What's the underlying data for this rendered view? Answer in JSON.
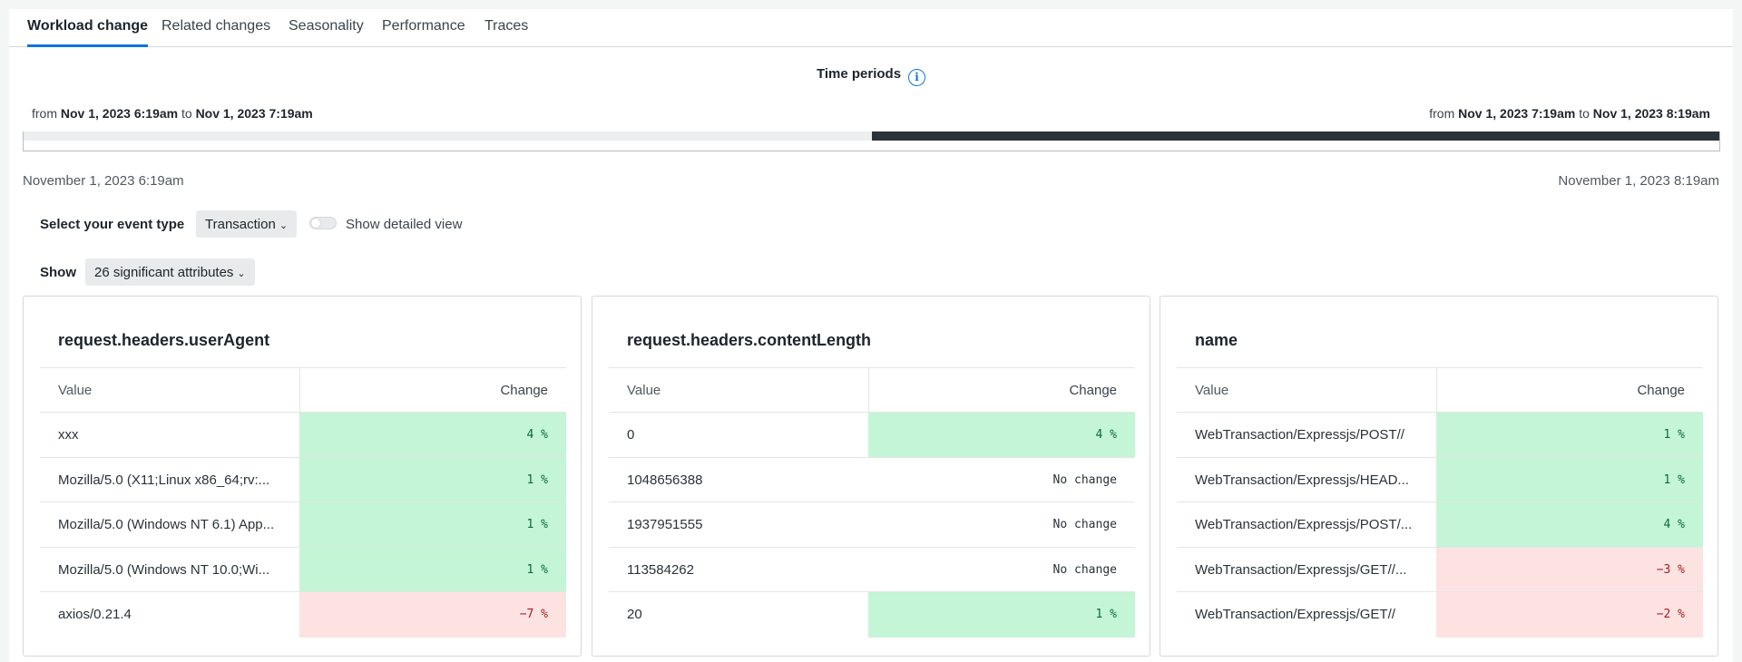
{
  "tabs": [
    {
      "label": "Workload change",
      "active": true
    },
    {
      "label": "Related changes"
    },
    {
      "label": "Seasonality"
    },
    {
      "label": "Performance"
    },
    {
      "label": "Traces"
    }
  ],
  "time_periods": {
    "title": "Time periods",
    "info_icon": "info-icon",
    "from_word": "from",
    "to_word": "to",
    "left_from": "Nov 1, 2023 6:19am",
    "left_to": "Nov 1, 2023 7:19am",
    "right_from": "Nov 1, 2023 7:19am",
    "right_to": "Nov 1, 2023 8:19am",
    "axis_start": "November 1, 2023 6:19am",
    "axis_end": "November 1, 2023 8:19am",
    "colors": {
      "baseline": "#eceeef",
      "comparison": "#293338"
    }
  },
  "controls": {
    "event_type_label": "Select your event type",
    "event_type_value": "Transaction",
    "detailed_view_label": "Show detailed view",
    "detailed_view_on": false,
    "show_label": "Show",
    "attributes_value": "26 significant attributes"
  },
  "colors": {
    "increase": "#c3f5d6",
    "decrease": "#fde2e2",
    "accent": "#0c74df"
  },
  "cards": [
    {
      "title": "request.headers.userAgent",
      "value_header": "Value",
      "change_header": "Change",
      "rows": [
        {
          "value": "xxx",
          "change": "4 %",
          "trend": "up"
        },
        {
          "value": "Mozilla/5.0 (X11;Linux x86_64;rv:...",
          "change": "1 %",
          "trend": "up"
        },
        {
          "value": "Mozilla/5.0 (Windows NT 6.1) App...",
          "change": "1 %",
          "trend": "up"
        },
        {
          "value": "Mozilla/5.0 (Windows NT 10.0;Wi...",
          "change": "1 %",
          "trend": "up"
        },
        {
          "value": "axios/0.21.4",
          "change": "−7 %",
          "trend": "down"
        }
      ]
    },
    {
      "title": "request.headers.contentLength",
      "value_header": "Value",
      "change_header": "Change",
      "rows": [
        {
          "value": "0",
          "change": "4 %",
          "trend": "up"
        },
        {
          "value": "1048656388",
          "change": "No change",
          "trend": "none"
        },
        {
          "value": "1937951555",
          "change": "No change",
          "trend": "none"
        },
        {
          "value": "113584262",
          "change": "No change",
          "trend": "none"
        },
        {
          "value": "20",
          "change": "1 %",
          "trend": "up"
        }
      ]
    },
    {
      "title": "name",
      "value_header": "Value",
      "change_header": "Change",
      "rows": [
        {
          "value": "WebTransaction/Expressjs/POST//",
          "change": "1 %",
          "trend": "up"
        },
        {
          "value": "WebTransaction/Expressjs/HEAD...",
          "change": "1 %",
          "trend": "up"
        },
        {
          "value": "WebTransaction/Expressjs/POST/...",
          "change": "4 %",
          "trend": "up"
        },
        {
          "value": "WebTransaction/Expressjs/GET//...",
          "change": "−3 %",
          "trend": "down"
        },
        {
          "value": "WebTransaction/Expressjs/GET//",
          "change": "−2 %",
          "trend": "down"
        }
      ]
    }
  ]
}
